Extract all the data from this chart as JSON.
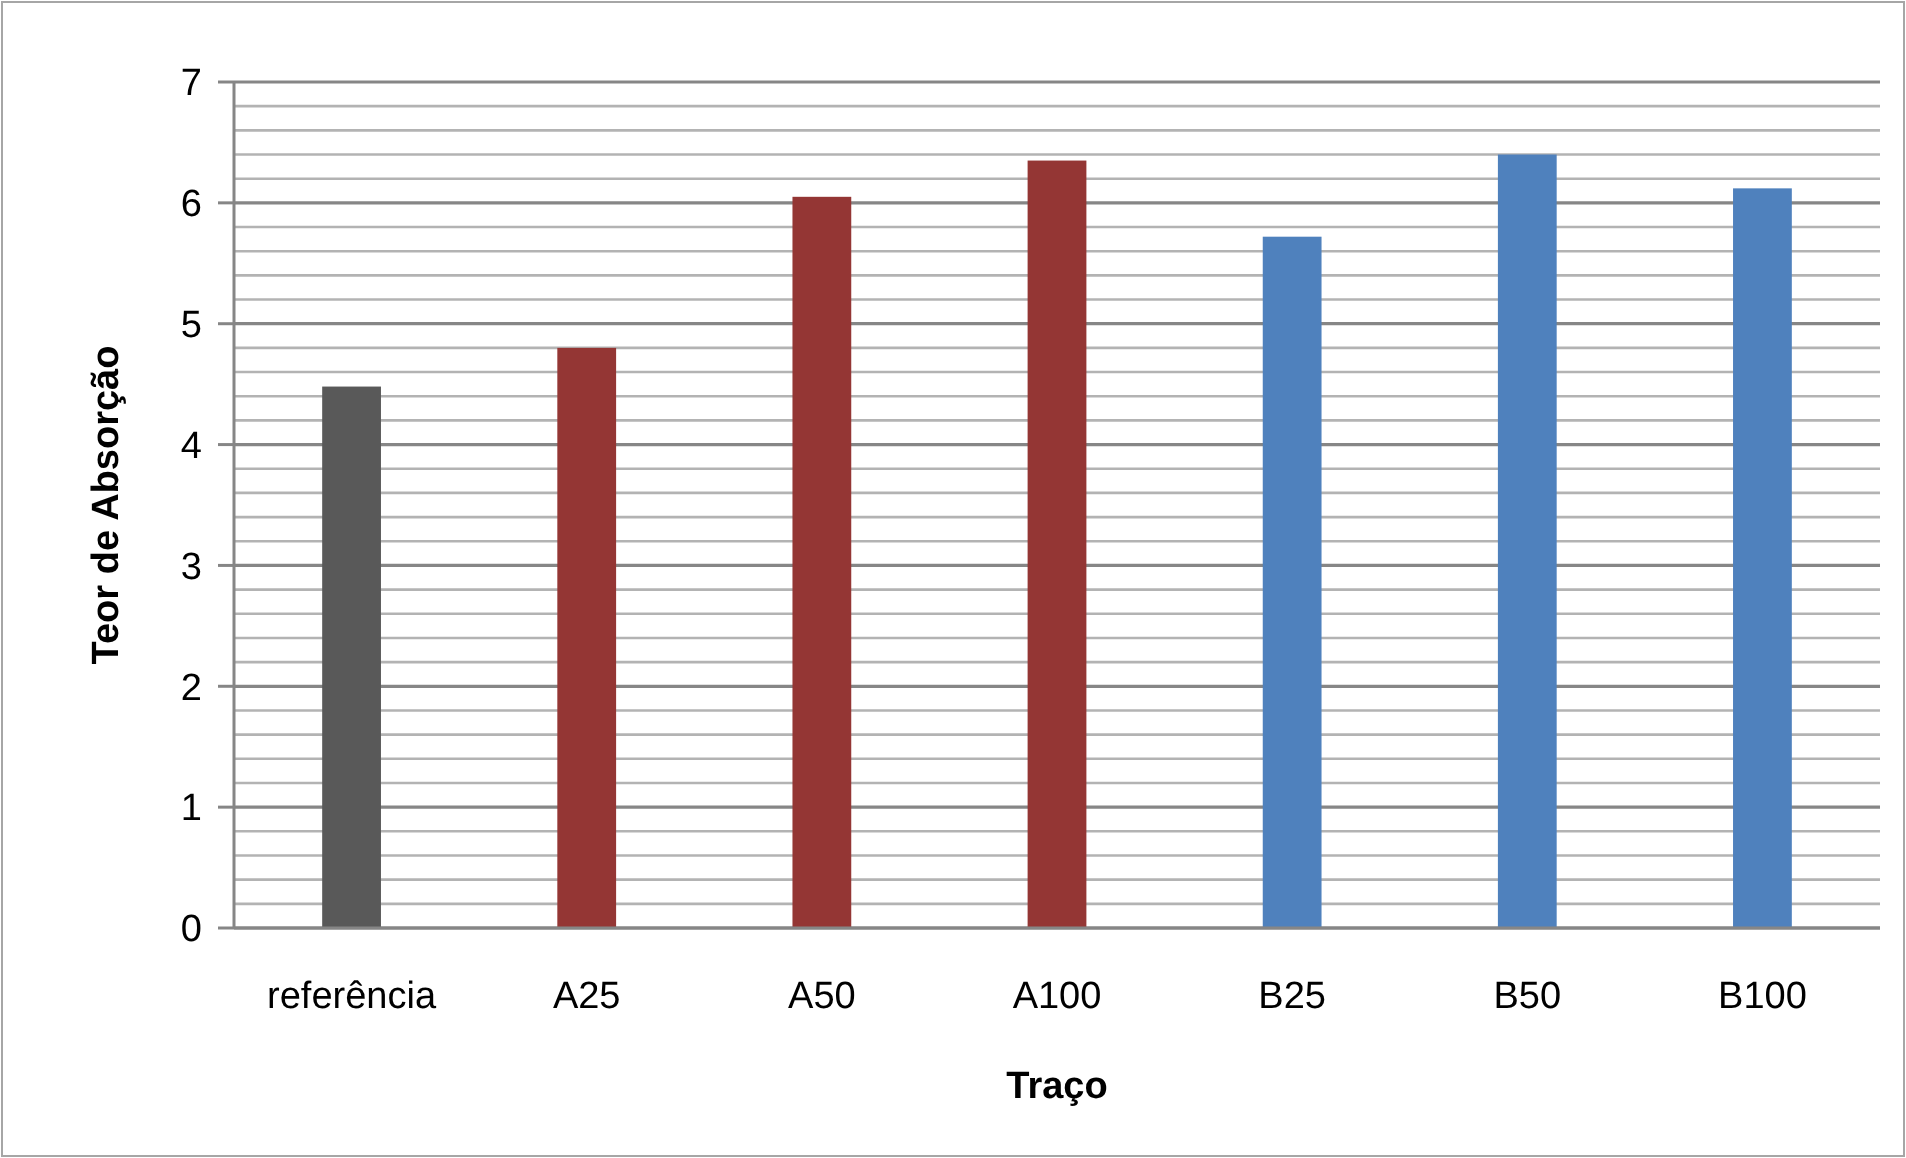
{
  "chart_data": {
    "type": "bar",
    "xlabel": "Traço",
    "ylabel": "Teor de Absorção",
    "categories": [
      "referência",
      "A25",
      "A50",
      "A100",
      "B25",
      "B50",
      "B100"
    ],
    "values": [
      4.48,
      4.8,
      6.05,
      6.35,
      5.72,
      6.4,
      6.12
    ],
    "colors": [
      "#595959",
      "#943634",
      "#943634",
      "#943634",
      "#4f81bd",
      "#4f81bd",
      "#4f81bd"
    ],
    "ylim": [
      0,
      7
    ],
    "yticks": [
      0,
      {
        "value": 0.2,
        "label": null
      },
      {
        "value": 0.4,
        "label": null
      },
      {
        "value": 0.6,
        "label": null
      },
      {
        "value": 0.8,
        "label": null
      },
      1,
      {
        "value": 1.2,
        "label": null
      },
      {
        "value": 1.4,
        "label": null
      },
      {
        "value": 1.6,
        "label": null
      },
      {
        "value": 1.8,
        "label": null
      },
      2,
      {
        "value": 2.2,
        "label": null
      },
      {
        "value": 2.4,
        "label": null
      },
      {
        "value": 2.6,
        "label": null
      },
      {
        "value": 2.8,
        "label": null
      },
      3,
      {
        "value": 3.2,
        "label": null
      },
      {
        "value": 3.4,
        "label": null
      },
      {
        "value": 3.6,
        "label": null
      },
      {
        "value": 3.8,
        "label": null
      },
      4,
      {
        "value": 4.2,
        "label": null
      },
      {
        "value": 4.4,
        "label": null
      },
      {
        "value": 4.6,
        "label": null
      },
      {
        "value": 4.8,
        "label": null
      },
      5,
      {
        "value": 5.2,
        "label": null
      },
      {
        "value": 5.4,
        "label": null
      },
      {
        "value": 5.6,
        "label": null
      },
      {
        "value": 5.8,
        "label": null
      },
      6,
      {
        "value": 6.2,
        "label": null
      },
      {
        "value": 6.4,
        "label": null
      },
      {
        "value": 6.6,
        "label": null
      },
      {
        "value": 6.8,
        "label": null
      },
      7
    ],
    "grid": true
  }
}
